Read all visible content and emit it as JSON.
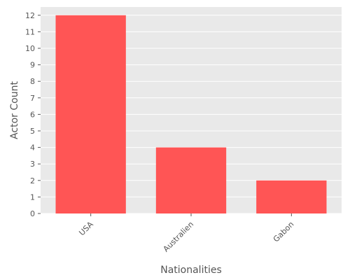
{
  "chart_data": {
    "type": "bar",
    "categories": [
      "USA",
      "Australien",
      "Gabon"
    ],
    "values": [
      12,
      4,
      2
    ],
    "title": "",
    "xlabel": "Nationalities",
    "ylabel": "Actor Count",
    "ylim": [
      0,
      12.5
    ],
    "yticks": [
      0,
      1,
      2,
      3,
      4,
      5,
      6,
      7,
      8,
      9,
      10,
      11,
      12
    ],
    "grid": true,
    "bar_color": "#ff5555",
    "background_color": "#e9e9e9",
    "grid_color": "#ffffff"
  }
}
